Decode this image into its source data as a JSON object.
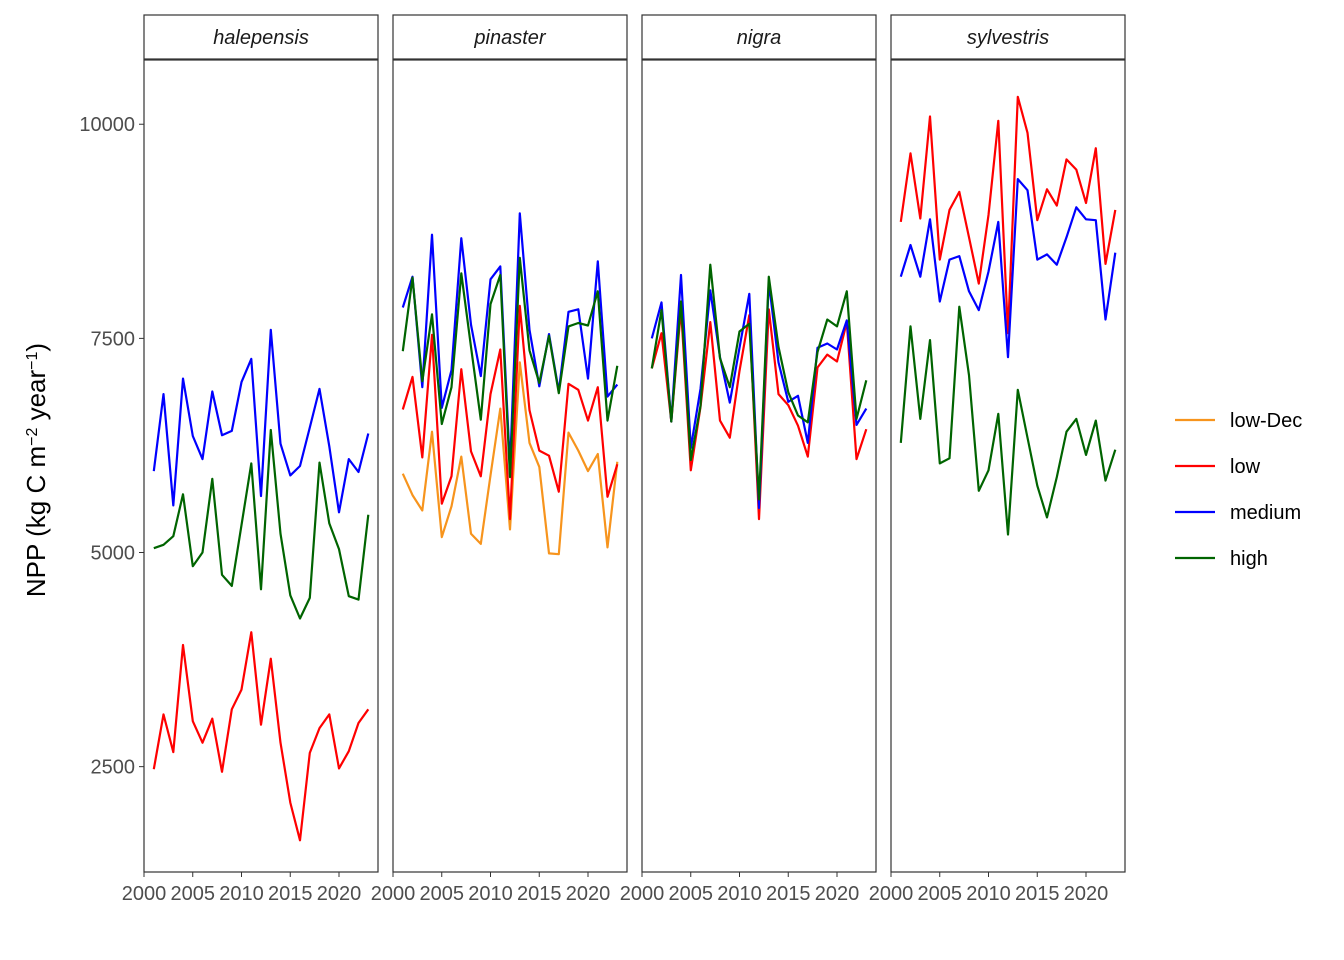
{
  "chart_data": {
    "type": "line",
    "xlabel": "",
    "ylabel": "NPP (kg C m^-2 year^-1)",
    "ylabel_parts": {
      "main": "NPP (kg C m",
      "exp1": "−2",
      "mid": " year",
      "exp2": "−1",
      "end": ")"
    },
    "xlim": [
      2000,
      2024
    ],
    "ylim": [
      1270,
      10750
    ],
    "x_ticks": [
      2000,
      2005,
      2010,
      2015,
      2020
    ],
    "x_tick_labels": [
      "2000",
      "2005",
      "2010",
      "2015",
      "2020"
    ],
    "y_ticks": [
      2500,
      5000,
      7500,
      10000
    ],
    "y_tick_labels": [
      "2500",
      "5000",
      "7500",
      "10000"
    ],
    "legend_position": "right",
    "legend": [
      {
        "key": "low-Dec",
        "label": "low-Dec",
        "color": "#f7941d"
      },
      {
        "key": "low",
        "label": "low",
        "color": "#ff0000"
      },
      {
        "key": "medium",
        "label": "medium",
        "color": "#0000ff"
      },
      {
        "key": "high",
        "label": "high",
        "color": "#006400"
      }
    ],
    "x": [
      2001,
      2002,
      2003,
      2004,
      2005,
      2006,
      2007,
      2008,
      2009,
      2010,
      2011,
      2012,
      2013,
      2014,
      2015,
      2016,
      2017,
      2018,
      2019,
      2020,
      2021,
      2022,
      2023
    ],
    "panels": [
      {
        "label": "halepensis",
        "series": [
          {
            "key": "medium",
            "values": [
              5950,
              6850,
              5550,
              7030,
              6360,
              6090,
              6880,
              6370,
              6420,
              6990,
              7260,
              5660,
              7600,
              6270,
              5900,
              6010,
              6460,
              6910,
              6240,
              5470,
              6090,
              5940,
              6390
            ]
          },
          {
            "key": "high",
            "values": [
              5050,
              5090,
              5190,
              5680,
              4840,
              5000,
              5860,
              4740,
              4610,
              5320,
              6040,
              4570,
              6430,
              5220,
              4500,
              4230,
              4470,
              6050,
              5340,
              5040,
              4490,
              4450,
              5440
            ]
          },
          {
            "key": "low",
            "values": [
              2470,
              3110,
              2670,
              3920,
              3030,
              2780,
              3060,
              2440,
              3170,
              3400,
              4070,
              2990,
              3760,
              2780,
              2080,
              1640,
              2660,
              2950,
              3110,
              2480,
              2680,
              3010,
              3170
            ]
          }
        ]
      },
      {
        "label": "pinaster",
        "series": [
          {
            "key": "low-Dec",
            "values": [
              5920,
              5670,
              5490,
              6410,
              5180,
              5540,
              6120,
              5220,
              5100,
              5900,
              6680,
              5270,
              7220,
              6280,
              6000,
              4990,
              4980,
              6400,
              6190,
              5950,
              6150,
              5060,
              6060
            ]
          },
          {
            "key": "low",
            "values": [
              6670,
              7050,
              6110,
              7540,
              5570,
              5890,
              7140,
              6180,
              5890,
              6850,
              7370,
              5390,
              7880,
              6660,
              6190,
              6130,
              5710,
              6970,
              6900,
              6540,
              6930,
              5650,
              6030
            ]
          },
          {
            "key": "medium",
            "values": [
              7860,
              8220,
              6930,
              8710,
              6690,
              7130,
              8670,
              7660,
              7060,
              8190,
              8340,
              5990,
              8960,
              7600,
              6940,
              7550,
              6880,
              7810,
              7840,
              7030,
              8400,
              6820,
              6960
            ]
          },
          {
            "key": "high",
            "values": [
              7350,
              8210,
              7000,
              7780,
              6500,
              6930,
              8260,
              7400,
              6550,
              7900,
              8240,
              5880,
              8440,
              7360,
              6980,
              7530,
              6860,
              7640,
              7680,
              7650,
              8050,
              6540,
              7180
            ]
          }
        ]
      },
      {
        "label": "nigra",
        "series": [
          {
            "key": "low",
            "values": [
              7150,
              7560,
              6530,
              7850,
              5960,
              6700,
              7690,
              6540,
              6340,
              7120,
              7770,
              5390,
              7840,
              6850,
              6720,
              6480,
              6120,
              7160,
              7310,
              7230,
              7690,
              6090,
              6440
            ]
          },
          {
            "key": "medium",
            "values": [
              7500,
              7920,
              6530,
              8240,
              6220,
              6910,
              8060,
              7280,
              6750,
              7390,
              8020,
              5520,
              8160,
              7220,
              6760,
              6830,
              6280,
              7390,
              7440,
              7370,
              7710,
              6490,
              6680
            ]
          },
          {
            "key": "high",
            "values": [
              7150,
              7830,
              6530,
              7930,
              6080,
              6710,
              8360,
              7270,
              6930,
              7580,
              7670,
              5620,
              8220,
              7400,
              6870,
              6600,
              6520,
              7340,
              7720,
              7640,
              8050,
              6560,
              7010
            ]
          }
        ]
      },
      {
        "label": "sylvestris",
        "series": [
          {
            "key": "low",
            "values": [
              8860,
              9660,
              8900,
              10090,
              8420,
              9000,
              9210,
              8680,
              8140,
              8940,
              10040,
              7560,
              10320,
              9900,
              8880,
              9240,
              9050,
              9590,
              9470,
              9080,
              9720,
              8370,
              9000
            ]
          },
          {
            "key": "medium",
            "values": [
              8220,
              8590,
              8220,
              8890,
              7930,
              8420,
              8460,
              8050,
              7830,
              8280,
              8860,
              7280,
              9360,
              9230,
              8420,
              8480,
              8360,
              8680,
              9030,
              8890,
              8880,
              7720,
              8500
            ]
          },
          {
            "key": "high",
            "values": [
              6280,
              7640,
              6560,
              7480,
              6040,
              6100,
              7870,
              7070,
              5720,
              5960,
              6620,
              5210,
              6900,
              6340,
              5780,
              5410,
              5880,
              6410,
              6560,
              6140,
              6540,
              5840,
              6200
            ]
          }
        ]
      }
    ]
  }
}
